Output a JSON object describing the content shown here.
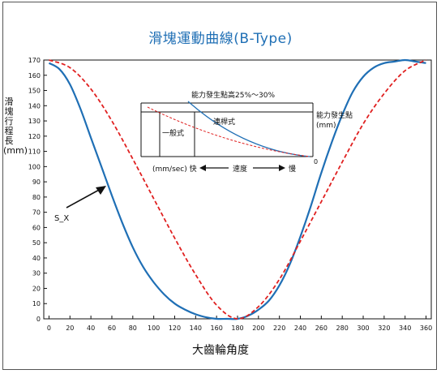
{
  "chart_data": {
    "type": "line",
    "title": "滑塊運動曲線(B-Type)",
    "xlabel": "大齒輪角度",
    "ylabel": "滑塊行程長(mm)",
    "xlim": [
      -5,
      365
    ],
    "ylim": [
      0,
      170
    ],
    "x_ticks": [
      0,
      20,
      40,
      60,
      80,
      100,
      120,
      140,
      160,
      180,
      200,
      220,
      240,
      260,
      280,
      300,
      320,
      340,
      360
    ],
    "y_ticks": [
      0,
      10,
      20,
      30,
      40,
      50,
      60,
      70,
      80,
      90,
      100,
      110,
      120,
      130,
      140,
      150,
      160,
      170
    ],
    "grid": false,
    "series": [
      {
        "name": "S_X",
        "color": "#1f6fb5",
        "style": "solid",
        "x": [
          0,
          10,
          20,
          30,
          40,
          50,
          60,
          70,
          80,
          90,
          100,
          110,
          120,
          130,
          140,
          150,
          160,
          170,
          180,
          190,
          200,
          210,
          220,
          230,
          240,
          250,
          260,
          270,
          280,
          290,
          300,
          310,
          320,
          330,
          340,
          350,
          360
        ],
        "y": [
          168,
          164,
          154,
          138,
          119,
          100,
          81,
          63,
          47,
          34,
          24,
          16,
          10,
          6,
          3,
          1,
          0,
          0,
          0,
          2,
          6,
          12,
          22,
          36,
          54,
          74,
          96,
          116,
          134,
          149,
          159,
          165,
          168,
          169,
          170,
          169,
          168
        ]
      },
      {
        "name": "",
        "color": "#e02020",
        "style": "dashed",
        "x": [
          0,
          20,
          40,
          60,
          80,
          100,
          120,
          140,
          160,
          180,
          200,
          220,
          240,
          260,
          280,
          300,
          320,
          340,
          360
        ],
        "y": [
          170,
          165,
          151,
          130,
          105,
          79,
          53,
          29,
          9,
          0,
          8,
          26,
          51,
          77,
          103,
          128,
          148,
          163,
          170
        ]
      }
    ],
    "annotations": [
      {
        "text": "S_X"
      }
    ]
  },
  "inset": {
    "top_label": "能力發生點高25%～30%",
    "right_label_1": "能力發生點",
    "right_label_2": "(mm)",
    "left_box_label": "一般式",
    "curve_label": "連桿式",
    "zero_label": "0",
    "speed_left": "(mm/sec) 快",
    "speed_mid": "速度",
    "speed_right": "慢"
  }
}
